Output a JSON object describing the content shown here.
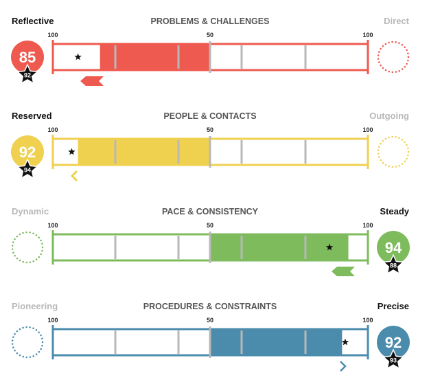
{
  "chart_data": {
    "type": "bar",
    "axis": {
      "left_label": "100",
      "mid_label": "50",
      "right_label": "100"
    },
    "rows": [
      {
        "title": "PROBLEMS & CHALLENGES",
        "left_label": "Reflective",
        "right_label": "Direct",
        "side": "left",
        "score": 85,
        "star_score": 92,
        "color": "#ee5a4f",
        "bar_value": 85,
        "star_value": 92,
        "indicator": "arrow-left-flag"
      },
      {
        "title": "PEOPLE & CONTACTS",
        "left_label": "Reserved",
        "right_label": "Outgoing",
        "side": "left",
        "score": 92,
        "star_score": 94,
        "color": "#efd04f",
        "bar_value": 92,
        "star_value": 94,
        "indicator": "chevron-left"
      },
      {
        "title": "PACE & CONSISTENCY",
        "left_label": "Dynamic",
        "right_label": "Steady",
        "side": "right",
        "score": 94,
        "star_score": 88,
        "color": "#7dbb5c",
        "bar_value": 94,
        "star_value": 88,
        "indicator": "arrow-left-flag"
      },
      {
        "title": "PROCEDURES & CONSTRAINTS",
        "left_label": "Pioneering",
        "right_label": "Precise",
        "side": "right",
        "score": 92,
        "star_score": 93,
        "color": "#4b8cad",
        "bar_value": 92,
        "star_value": 93,
        "indicator": "chevron-right"
      }
    ],
    "colors": {
      "inactive_label": "#b8b8b8",
      "active_label": "#111111",
      "title": "#555555",
      "grid": "#b8b8b8"
    }
  }
}
